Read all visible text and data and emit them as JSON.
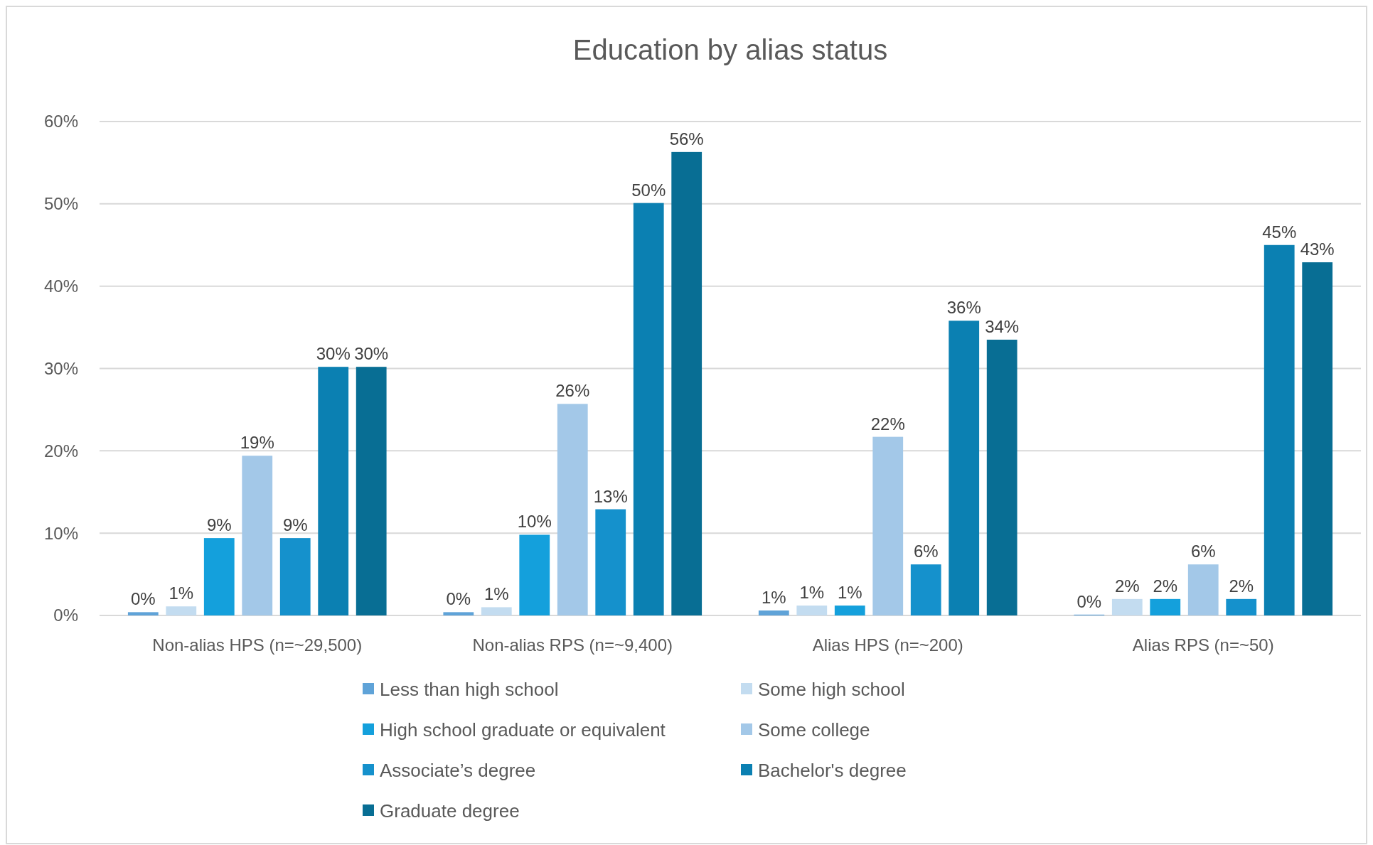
{
  "chart_data": {
    "type": "bar",
    "title": "Education by alias status",
    "categories": [
      "Non-alias HPS (n=~29,500)",
      "Non-alias RPS (n=~9,400)",
      "Alias HPS (n=~200)",
      "Alias RPS (n=~50)"
    ],
    "series": [
      {
        "name": "Less than high school",
        "color": "#5fa3d8",
        "values": [
          0.4,
          0.4,
          0.6,
          0.1
        ],
        "value_labels": [
          "0%",
          "0%",
          "1%",
          "0%"
        ]
      },
      {
        "name": "Some high school",
        "color": "#c3dcf0",
        "values": [
          1.1,
          1.0,
          1.2,
          2.0
        ],
        "value_labels": [
          "1%",
          "1%",
          "1%",
          "2%"
        ]
      },
      {
        "name": "High school graduate or equivalent",
        "color": "#14a0dc",
        "values": [
          9.4,
          9.8,
          1.2,
          2.0
        ],
        "value_labels": [
          "9%",
          "10%",
          "1%",
          "2%"
        ]
      },
      {
        "name": "Some college",
        "color": "#a3c8e8",
        "values": [
          19.4,
          25.7,
          21.7,
          6.2
        ],
        "value_labels": [
          "19%",
          "26%",
          "22%",
          "6%"
        ]
      },
      {
        "name": "Associate’s degree",
        "color": "#1591cc",
        "values": [
          9.4,
          12.9,
          6.2,
          2.0
        ],
        "value_labels": [
          "9%",
          "13%",
          "6%",
          "2%"
        ]
      },
      {
        "name": "Bachelor's degree",
        "color": "#0b80b2",
        "values": [
          30.2,
          50.1,
          35.8,
          45.0
        ],
        "value_labels": [
          "30%",
          "50%",
          "36%",
          "45%"
        ]
      },
      {
        "name": "Graduate degree",
        "color": "#086e94",
        "values": [
          30.2,
          56.3,
          33.5,
          42.9
        ],
        "value_labels": [
          "30%",
          "56%",
          "34%",
          "43%"
        ]
      }
    ],
    "ylim": [
      0,
      60
    ],
    "yticks": [
      {
        "value": 0,
        "label": "0%"
      },
      {
        "value": 10,
        "label": "10%"
      },
      {
        "value": 20,
        "label": "20%"
      },
      {
        "value": 30,
        "label": "30%"
      },
      {
        "value": 40,
        "label": "40%"
      },
      {
        "value": 50,
        "label": "50%"
      },
      {
        "value": 60,
        "label": "60%"
      }
    ],
    "grid": "y",
    "legend": "bottom"
  }
}
